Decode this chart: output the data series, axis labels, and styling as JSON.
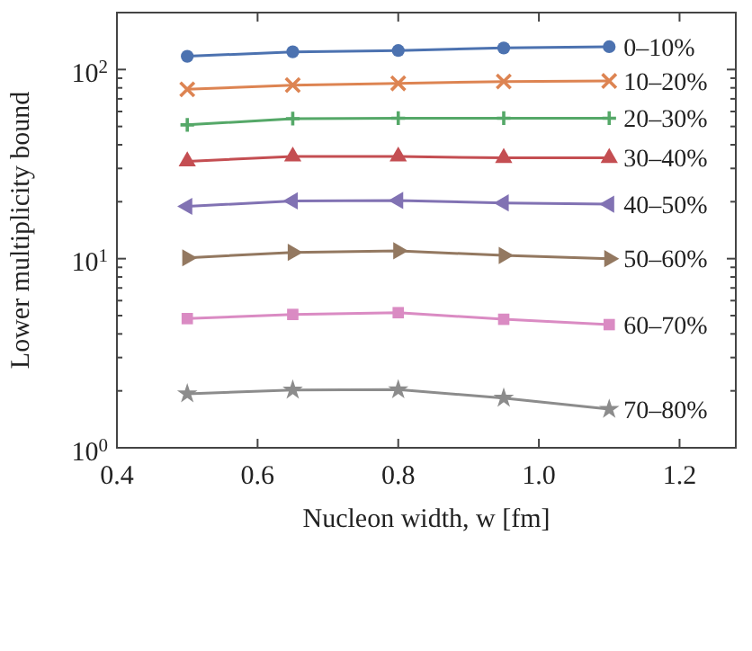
{
  "chart_data": {
    "type": "line",
    "xlabel": "Nucleon width, w [fm]",
    "ylabel": "Lower multiplicity bound",
    "log": "y",
    "xlim": [
      0.4,
      1.28
    ],
    "xticks": [
      0.4,
      0.6,
      0.8,
      {
        "value": 1,
        "label": "1.0"
      },
      1.2
    ],
    "ylim": [
      1,
      200
    ],
    "yticks": [
      {
        "value": 1,
        "label": "10$^{0}$"
      },
      {
        "value": 2,
        "label": null
      },
      {
        "value": 3,
        "label": null
      },
      {
        "value": 4,
        "label": null
      },
      {
        "value": 5,
        "label": null
      },
      {
        "value": 6,
        "label": null
      },
      {
        "value": 7,
        "label": null
      },
      {
        "value": 8,
        "label": null
      },
      {
        "value": 9,
        "label": null
      },
      {
        "value": 10,
        "label": "10$^{1}$"
      },
      {
        "value": 20,
        "label": null
      },
      {
        "value": 30,
        "label": null
      },
      {
        "value": 40,
        "label": null
      },
      {
        "value": 50,
        "label": null
      },
      {
        "value": 60,
        "label": null
      },
      {
        "value": 70,
        "label": null
      },
      {
        "value": 80,
        "label": null
      },
      {
        "value": 90,
        "label": null
      },
      {
        "value": 100,
        "label": "10$^{2}$"
      },
      {
        "value": 200,
        "label": null
      }
    ],
    "grid": false,
    "legend": false,
    "x": [
      0.5,
      0.65,
      0.8,
      0.95,
      1.1
    ],
    "series": [
      {
        "name": "0–10%",
        "color": "#4c72b0",
        "marker": "circle",
        "values": [
          117.5,
          124,
          126,
          130,
          132
        ]
      },
      {
        "name": "10–20%",
        "color": "#dd8452",
        "marker": "cross",
        "values": [
          78.6,
          82.7,
          84.5,
          86.4,
          87
        ]
      },
      {
        "name": "20–30%",
        "color": "#55a868",
        "marker": "plus",
        "values": [
          51,
          55,
          55.3,
          55.3,
          55.3
        ]
      },
      {
        "name": "30–40%",
        "color": "#c44e52",
        "marker": "triangle",
        "values": [
          32.7,
          34.7,
          34.7,
          34.1,
          34.1
        ]
      },
      {
        "name": "40–50%",
        "color": "#8172b3",
        "marker": "triangle-left",
        "values": [
          18.9,
          20.2,
          20.3,
          19.7,
          19.4
        ]
      },
      {
        "name": "50–60%",
        "color": "#937860",
        "marker": "triangle-right",
        "values": [
          10.1,
          10.8,
          11,
          10.4,
          10
        ]
      },
      {
        "name": "60–70%",
        "color": "#da8bc3",
        "marker": "square",
        "values": [
          4.82,
          5.07,
          5.18,
          4.78,
          4.48
        ]
      },
      {
        "name": "70–80%",
        "color": "#8c8c8c",
        "marker": "star",
        "values": [
          1.93,
          2.02,
          2.03,
          1.83,
          1.6
        ]
      }
    ]
  }
}
